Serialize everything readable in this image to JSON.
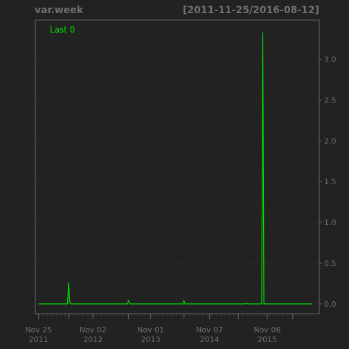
{
  "title": "var.week",
  "date_range": "[2011-11-25/2016-08-12]",
  "colors": {
    "background": "#222222",
    "line": "#00e000",
    "grid": "#2f2f2f",
    "axis": "#666666",
    "text": "#707070"
  },
  "chart_data": {
    "type": "line",
    "legend": "Last 0",
    "x_ticks": [
      {
        "date": "2011-11-25",
        "label1": "Nov 25",
        "label2": "2011"
      },
      {
        "date": "2012-11-02",
        "label1": "Nov 02",
        "label2": "2012"
      },
      {
        "date": "2013-11-01",
        "label1": "Nov 01",
        "label2": "2013"
      },
      {
        "date": "2014-11-07",
        "label1": "Nov 07",
        "label2": "2014"
      },
      {
        "date": "2015-11-06",
        "label1": "Nov 06",
        "label2": "2015"
      }
    ],
    "y_ticks": [
      "0.0",
      "0.5",
      "1.0",
      "1.5",
      "2.0",
      "2.5",
      "3.0"
    ],
    "ylim": [
      -0.12,
      3.48
    ],
    "xlim": [
      "2011-11-04",
      "2016-09-29"
    ],
    "series": [
      {
        "points": [
          [
            "2011-11-25",
            0.0
          ],
          [
            "2012-05-25",
            0.0
          ],
          [
            "2012-06-01",
            0.26
          ],
          [
            "2012-06-08",
            0.02
          ],
          [
            "2012-06-15",
            0.0
          ],
          [
            "2013-06-07",
            0.0
          ],
          [
            "2013-06-14",
            0.04
          ],
          [
            "2013-06-21",
            0.0
          ],
          [
            "2014-05-23",
            0.0
          ],
          [
            "2014-05-30",
            0.04
          ],
          [
            "2014-06-06",
            0.0
          ],
          [
            "2015-06-19",
            0.0
          ],
          [
            "2015-06-26",
            0.01
          ],
          [
            "2015-07-03",
            0.0
          ],
          [
            "2015-10-02",
            0.0
          ],
          [
            "2015-10-09",
            3.33
          ],
          [
            "2015-10-16",
            0.0
          ],
          [
            "2016-08-12",
            0.0
          ]
        ]
      }
    ]
  }
}
